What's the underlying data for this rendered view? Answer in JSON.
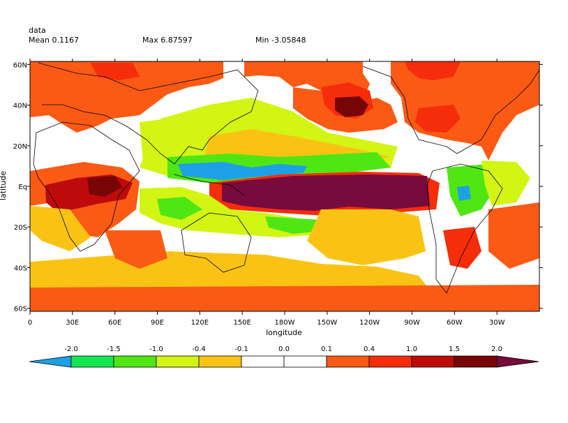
{
  "header": {
    "variable": "data",
    "mean": "Mean 0.1167",
    "max": "Max 6.87597",
    "min": "Min -3.05848"
  },
  "axes": {
    "xlabel": "longitude",
    "ylabel": "latitude",
    "x_ticks": [
      "0",
      "30E",
      "60E",
      "90E",
      "120E",
      "150E",
      "180W",
      "150W",
      "120W",
      "90W",
      "60W",
      "30W"
    ],
    "y_ticks": [
      "60N",
      "40N",
      "20N",
      "Eq",
      "20S",
      "40S",
      "60S"
    ]
  },
  "colorbar": {
    "labels": [
      "-2.0",
      "-1.5",
      "-1.0",
      "-0.4",
      "-0.1",
      "0.0",
      "0.1",
      "0.4",
      "1.0",
      "1.5",
      "2.0"
    ],
    "colors": [
      "#1ea0e6",
      "#14e650",
      "#50e614",
      "#d2f514",
      "#fac314",
      "#ffffff",
      "#ffffff",
      "#fa5a14",
      "#f52d0a",
      "#be0a0a",
      "#780505",
      "#780a3c"
    ]
  }
}
